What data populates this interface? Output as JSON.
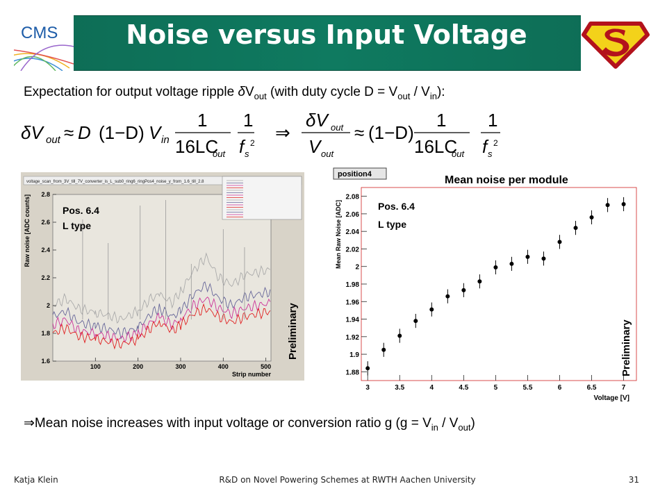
{
  "header": {
    "title": "Noise versus Input Voltage",
    "logo_left_text": "CMS",
    "logo_right_icon": "superman-shield-icon"
  },
  "intro": {
    "text_a": "Expectation for output voltage ripple ",
    "delta": "δ",
    "v": "V",
    "sub_out": "out",
    "text_b": " (with duty cycle D = V",
    "sub_out2": "out",
    "text_c": " / V",
    "sub_in": "in",
    "text_d": "):"
  },
  "formula": {
    "lhs": "δV",
    "lhs_sub": "out",
    "approx": "≈",
    "d": "D",
    "one_minus_d": "(1−D)",
    "vin": "V",
    "vin_sub": "in",
    "num1": "1",
    "den1": "16LC",
    "den1_sub": "out",
    "num2": "1",
    "den2": "f",
    "den2_sub": "s",
    "den2_sup": "2",
    "implies": "⇒",
    "rhs_num": "δV",
    "rhs_num_sub": "out",
    "rhs_den": "V",
    "rhs_den_sub": "out",
    "approx2": "≈",
    "one_minus_d2": "(1−D)",
    "num3": "1",
    "den3": "16LC",
    "den3_sub": "out",
    "num4": "1",
    "den4": "f",
    "den4_sub": "s",
    "den4_sup": "2"
  },
  "left_plot": {
    "header_text": "voltage_scan_from_3V_till_7V_converter_is_L_sub0_ring6_ringPos4_noise_y_from_1.6_till_2.8",
    "annotation_line1": "Pos. 6.4",
    "annotation_line2": "L type",
    "watermark": "Preliminary"
  },
  "right_plot": {
    "header_box": "position4",
    "title": "Mean noise per module",
    "annotation_line1": "Pos. 6.4",
    "annotation_line2": "L type",
    "watermark": "Preliminary"
  },
  "conclusion": {
    "arrow": "⇒",
    "text_a": "Mean noise increases with input voltage or conversion ratio g (g = V",
    "sub_in": "in",
    "text_b": " / V",
    "sub_out": "out",
    "text_c": ")"
  },
  "footer": {
    "author": "Katja Klein",
    "talk": "R&D on Novel Powering Schemes at RWTH Aachen University",
    "page": "31"
  },
  "chart_data": [
    {
      "type": "line",
      "title": "",
      "xlabel": "Strip number",
      "ylabel": "Raw noise [ADC counts]",
      "xlim": [
        0,
        512
      ],
      "ylim": [
        1.6,
        2.8
      ],
      "xticks": [
        100,
        200,
        300,
        400,
        500
      ],
      "yticks": [
        1.6,
        1.8,
        2,
        2.2,
        2.4,
        2.6,
        2.8
      ],
      "grid": false,
      "series": [
        {
          "color": "#aaaaaa",
          "values_x": [
            0,
            30,
            60,
            100,
            130,
            160,
            200,
            230,
            250,
            280,
            300,
            330,
            360,
            390,
            420,
            450,
            480,
            512
          ],
          "values_y": [
            2.0,
            2.05,
            1.98,
            1.95,
            1.93,
            1.9,
            1.96,
            2.05,
            2.08,
            2.02,
            2.1,
            2.25,
            2.35,
            2.2,
            2.15,
            2.22,
            2.24,
            2.26
          ]
        },
        {
          "color": "#666699",
          "values_x": [
            0,
            30,
            60,
            100,
            130,
            160,
            200,
            230,
            250,
            280,
            300,
            330,
            360,
            390,
            420,
            450,
            480,
            512
          ],
          "values_y": [
            1.92,
            1.96,
            1.88,
            1.85,
            1.83,
            1.8,
            1.84,
            1.94,
            1.98,
            1.92,
            1.96,
            2.08,
            2.15,
            2.05,
            2.0,
            2.06,
            2.08,
            2.1
          ]
        },
        {
          "color": "#cc3399",
          "values_x": [
            0,
            30,
            60,
            100,
            130,
            160,
            200,
            230,
            250,
            280,
            300,
            330,
            360,
            390,
            420,
            450,
            480,
            512
          ],
          "values_y": [
            1.86,
            1.9,
            1.82,
            1.8,
            1.78,
            1.76,
            1.8,
            1.88,
            1.92,
            1.86,
            1.9,
            2.0,
            2.05,
            1.98,
            1.94,
            1.98,
            2.0,
            2.02
          ]
        },
        {
          "color": "#e02020",
          "values_x": [
            0,
            30,
            60,
            100,
            130,
            160,
            200,
            230,
            250,
            280,
            300,
            330,
            360,
            390,
            420,
            450,
            480,
            512
          ],
          "values_y": [
            1.8,
            1.84,
            1.78,
            1.76,
            1.74,
            1.72,
            1.76,
            1.84,
            1.88,
            1.82,
            1.86,
            1.94,
            1.98,
            1.92,
            1.88,
            1.92,
            1.94,
            1.96
          ]
        }
      ]
    },
    {
      "type": "scatter",
      "title": "Mean noise per module",
      "xlabel": "Voltage [V]",
      "ylabel": "Mean Raw Noise [ADC]",
      "xlim": [
        2.9,
        7.2
      ],
      "ylim": [
        1.87,
        2.09
      ],
      "xticks": [
        3,
        3.5,
        4,
        4.5,
        5,
        5.5,
        6,
        6.5,
        7
      ],
      "yticks": [
        1.88,
        1.9,
        1.92,
        1.94,
        1.96,
        1.98,
        2,
        2.02,
        2.04,
        2.06,
        2.08
      ],
      "series": [
        {
          "x": [
            3.0,
            3.25,
            3.5,
            3.75,
            4.0,
            4.25,
            4.5,
            4.75,
            5.0,
            5.25,
            5.5,
            5.75,
            6.0,
            6.25,
            6.5,
            6.75,
            7.0
          ],
          "y": [
            1.884,
            1.905,
            1.921,
            1.938,
            1.951,
            1.966,
            1.973,
            1.983,
            1.999,
            2.003,
            2.011,
            2.009,
            2.028,
            2.044,
            2.056,
            2.07,
            2.071
          ],
          "yerr": [
            0.008,
            0.008,
            0.008,
            0.008,
            0.008,
            0.008,
            0.008,
            0.008,
            0.008,
            0.008,
            0.008,
            0.008,
            0.008,
            0.008,
            0.008,
            0.008,
            0.008
          ]
        }
      ]
    }
  ]
}
